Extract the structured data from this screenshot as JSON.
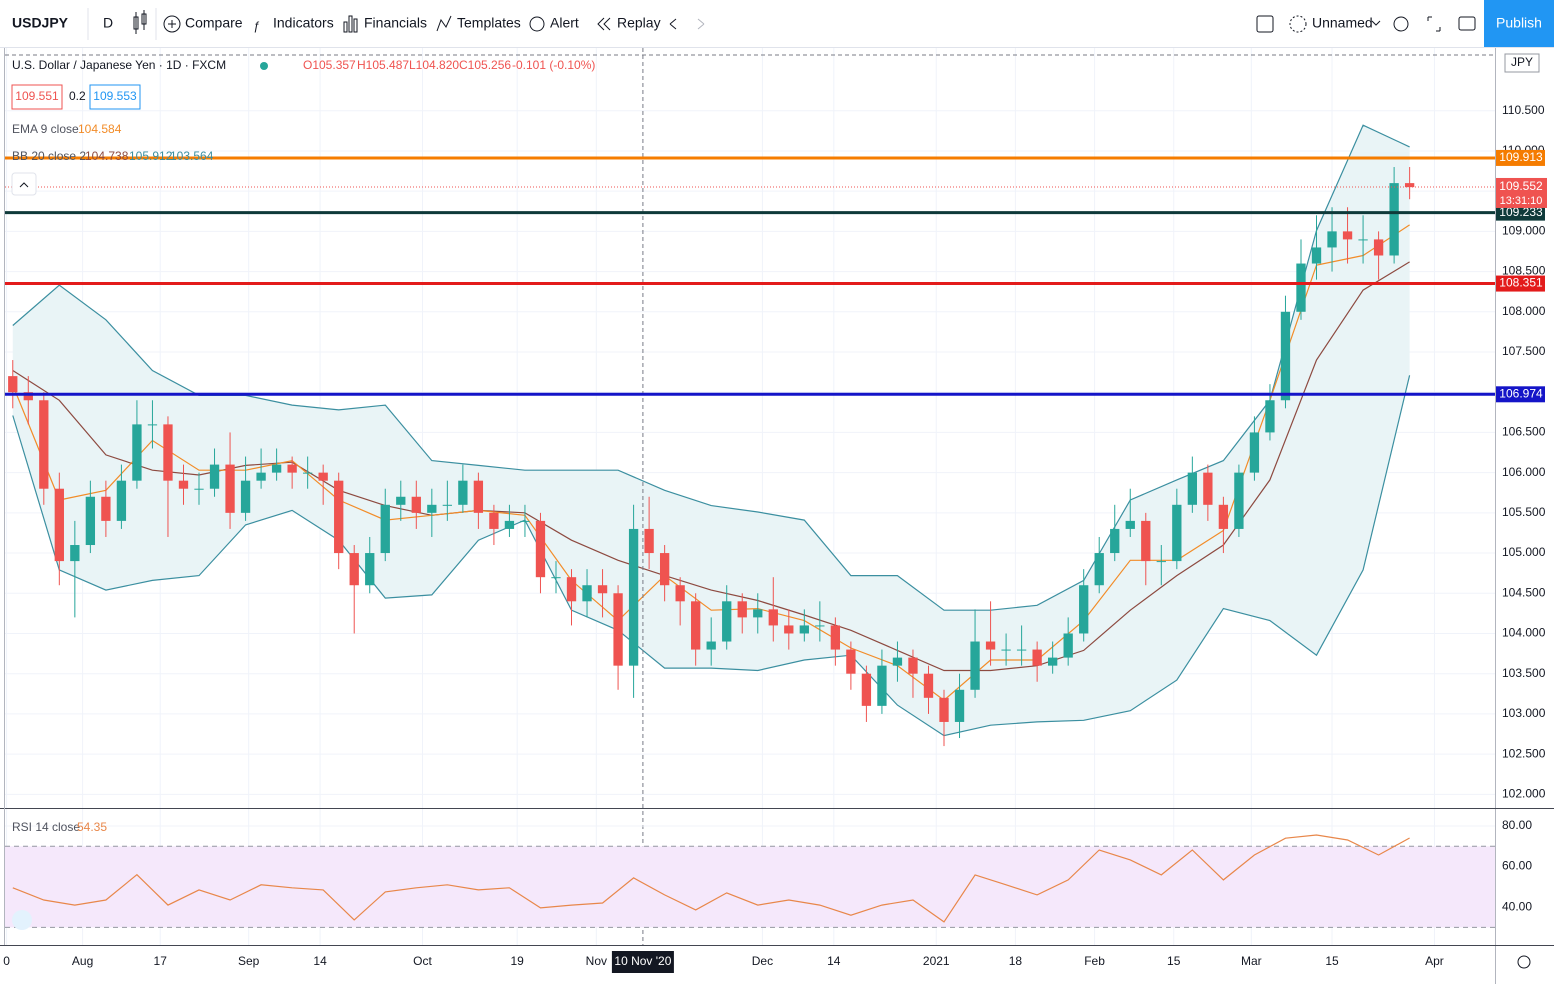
{
  "toolbar": {
    "symbol": "USDJPY",
    "interval": "D",
    "items": [
      "Compare",
      "Indicators",
      "Financials",
      "Templates",
      "Alert",
      "Replay"
    ],
    "layout": "Unnamed",
    "publish": "Publish"
  },
  "chart_data": [
    {
      "type": "candlestick",
      "title": "U.S. Dollar / Japanese Yen · 1D · FXCM",
      "ohlc_legend": [
        "O105.357",
        "H105.487",
        "L104.820",
        "C105.256",
        "-0.101 (-0.10%)"
      ],
      "bid": "109.551",
      "spread": "0.2",
      "ask": "109.553",
      "currency": "JPY",
      "up_color": "#26a69a",
      "down_color": "#ef5350",
      "open": [
        107.2,
        107.0,
        106.9,
        105.8,
        104.9,
        105.1,
        105.7,
        105.4,
        105.9,
        106.6,
        106.6,
        105.9,
        105.8,
        105.8,
        106.1,
        105.5,
        105.9,
        106.0,
        106.1,
        106.0,
        106.0,
        105.9,
        105.0,
        104.6,
        105.0,
        105.6,
        105.7,
        105.5,
        105.6,
        105.6,
        105.9,
        105.5,
        105.3,
        105.4,
        105.4,
        104.7,
        104.7,
        104.4,
        104.6,
        104.5,
        103.6,
        105.3,
        105.0,
        104.6,
        104.4,
        103.8,
        103.9,
        104.4,
        104.2,
        104.3,
        104.1,
        104.0,
        104.1,
        104.1,
        103.8,
        103.5,
        103.1,
        103.6,
        103.7,
        103.5,
        103.2,
        102.9,
        103.3,
        103.9,
        103.8,
        103.8,
        103.8,
        103.6,
        103.7,
        104.0,
        104.6,
        105.0,
        105.3,
        105.4,
        104.9,
        104.9,
        105.6,
        106.0,
        105.6,
        105.3,
        106.0,
        106.5,
        106.9,
        108.0,
        108.6,
        108.8,
        109.0,
        108.9,
        108.9,
        108.7,
        109.6
      ],
      "high": [
        107.4,
        107.2,
        107.0,
        106.0,
        105.4,
        105.9,
        105.9,
        106.1,
        106.9,
        106.9,
        106.7,
        106.1,
        106.0,
        106.3,
        106.5,
        106.2,
        106.3,
        106.3,
        106.2,
        106.2,
        106.1,
        106.0,
        105.1,
        105.2,
        105.8,
        105.9,
        105.9,
        105.8,
        105.9,
        106.1,
        106.0,
        105.6,
        105.6,
        105.6,
        105.5,
        104.9,
        104.8,
        104.8,
        104.8,
        104.6,
        105.6,
        105.7,
        105.1,
        104.7,
        104.5,
        104.2,
        104.6,
        104.5,
        104.5,
        104.7,
        104.3,
        104.3,
        104.4,
        104.2,
        103.9,
        103.6,
        103.8,
        103.9,
        103.8,
        103.6,
        103.3,
        103.5,
        104.3,
        104.4,
        104.0,
        104.1,
        103.9,
        103.9,
        104.2,
        104.8,
        105.2,
        105.6,
        105.8,
        105.5,
        105.1,
        105.8,
        106.2,
        106.1,
        105.7,
        106.1,
        106.7,
        107.1,
        108.2,
        108.9,
        109.2,
        109.3,
        109.3,
        109.2,
        109.0,
        109.8,
        109.8
      ],
      "low": [
        106.8,
        106.6,
        105.6,
        104.6,
        104.2,
        105.0,
        105.2,
        105.3,
        105.8,
        106.3,
        105.2,
        105.6,
        105.6,
        105.7,
        105.3,
        105.4,
        105.8,
        105.9,
        105.8,
        105.8,
        105.6,
        104.8,
        104.0,
        104.5,
        104.9,
        105.4,
        105.3,
        105.2,
        105.4,
        105.5,
        105.3,
        105.1,
        105.2,
        105.2,
        104.5,
        104.5,
        104.1,
        104.2,
        104.2,
        103.3,
        103.2,
        104.8,
        104.4,
        104.1,
        103.6,
        103.6,
        103.8,
        104.0,
        104.0,
        103.9,
        103.8,
        103.9,
        103.9,
        103.6,
        103.3,
        102.9,
        103.0,
        103.4,
        103.2,
        103.0,
        102.6,
        102.7,
        103.2,
        103.6,
        103.6,
        103.6,
        103.4,
        103.5,
        103.6,
        103.9,
        104.5,
        104.9,
        105.2,
        104.6,
        104.6,
        104.8,
        105.5,
        105.4,
        105.0,
        105.2,
        105.9,
        106.4,
        106.8,
        107.9,
        108.4,
        108.5,
        108.6,
        108.6,
        108.4,
        108.6,
        109.4
      ],
      "close": [
        107.0,
        106.9,
        105.8,
        104.9,
        105.1,
        105.7,
        105.4,
        105.9,
        106.6,
        106.6,
        105.9,
        105.8,
        105.8,
        106.1,
        105.5,
        105.9,
        106.0,
        106.1,
        106.0,
        106.0,
        105.9,
        105.0,
        104.6,
        105.0,
        105.6,
        105.7,
        105.5,
        105.6,
        105.6,
        105.9,
        105.5,
        105.3,
        105.4,
        105.4,
        104.7,
        104.7,
        104.4,
        104.6,
        104.5,
        103.6,
        105.3,
        105.0,
        104.6,
        104.4,
        103.8,
        103.9,
        104.4,
        104.2,
        104.3,
        104.1,
        104.0,
        104.1,
        104.1,
        103.8,
        103.5,
        103.1,
        103.6,
        103.7,
        103.5,
        103.2,
        102.9,
        103.3,
        103.9,
        103.8,
        103.8,
        103.8,
        103.6,
        103.7,
        104.0,
        104.6,
        105.0,
        105.3,
        105.4,
        104.9,
        104.9,
        105.6,
        106.0,
        105.6,
        105.3,
        106.0,
        106.5,
        106.9,
        108.0,
        108.6,
        108.8,
        109.0,
        108.9,
        108.9,
        108.7,
        109.6,
        109.55
      ],
      "series": [
        {
          "name": "EMA 9 close",
          "legend_value": "104.584",
          "color": "#f28c28",
          "x": [
            0,
            3,
            6,
            9,
            12,
            15,
            18,
            21,
            24,
            27,
            30,
            33,
            36,
            39,
            42,
            45,
            48,
            51,
            54,
            57,
            60,
            63,
            66,
            69,
            72,
            75,
            78,
            81,
            84,
            87,
            90
          ],
          "values": [
            107.09,
            105.66,
            105.78,
            106.4,
            106.03,
            106.03,
            106.15,
            105.66,
            105.41,
            105.47,
            105.53,
            105.47,
            104.66,
            104.16,
            104.72,
            104.29,
            104.31,
            104.16,
            103.82,
            103.6,
            103.17,
            103.67,
            103.67,
            104.16,
            104.91,
            104.91,
            105.28,
            106.9,
            108.58,
            108.7,
            109.08
          ]
        }
      ],
      "bands": {
        "name": "BB 20 close 2",
        "legend_values": [
          "104.738",
          "105.912",
          "103.564"
        ],
        "color": "#3b8fa0",
        "middle_color": "#8d4a40",
        "fill": "#e9f4f6",
        "x": [
          0,
          3,
          6,
          9,
          12,
          15,
          18,
          21,
          24,
          27,
          30,
          33,
          36,
          39,
          42,
          45,
          48,
          51,
          54,
          57,
          60,
          63,
          66,
          69,
          72,
          75,
          78,
          81,
          84,
          87,
          90
        ],
        "upper": [
          107.83,
          108.33,
          107.9,
          107.27,
          106.96,
          106.96,
          106.84,
          106.78,
          106.84,
          106.15,
          106.09,
          106.03,
          106.03,
          106.03,
          105.78,
          105.59,
          105.51,
          105.41,
          104.72,
          104.72,
          104.29,
          104.29,
          104.35,
          104.66,
          105.66,
          105.91,
          106.15,
          106.9,
          109.01,
          110.32,
          110.05
        ],
        "middle": [
          107.27,
          106.9,
          106.22,
          106.03,
          105.97,
          106.09,
          106.13,
          105.78,
          105.59,
          105.47,
          105.53,
          105.5,
          105.16,
          104.91,
          104.72,
          104.54,
          104.41,
          104.23,
          104.04,
          103.79,
          103.54,
          103.54,
          103.6,
          103.79,
          104.29,
          104.72,
          105.1,
          105.91,
          107.4,
          108.27,
          108.62
        ],
        "lower": [
          106.71,
          104.79,
          104.54,
          104.66,
          104.72,
          105.35,
          105.53,
          105.16,
          104.44,
          104.48,
          105.16,
          105.41,
          104.29,
          104.04,
          103.57,
          103.57,
          103.54,
          103.67,
          103.73,
          103.11,
          102.73,
          102.86,
          102.9,
          102.92,
          103.04,
          103.42,
          104.31,
          104.16,
          103.73,
          104.79,
          107.21
        ]
      },
      "price_lines": [
        {
          "value": 109.913,
          "color": "#f57c00"
        },
        {
          "value": 109.233,
          "color": "#0f3a3a"
        },
        {
          "value": 108.351,
          "color": "#e31b1b"
        },
        {
          "value": 106.974,
          "color": "#1414c8"
        }
      ],
      "last_price": {
        "value": 109.552,
        "countdown": "13:31:10",
        "color": "#ef5350"
      },
      "crosshair": {
        "x": 40.6,
        "label": "10 Nov '20"
      },
      "grid": true,
      "xlim": [
        -0.5,
        95.5
      ],
      "xticks": [
        {
          "value": -0.4,
          "label": "0"
        },
        {
          "value": 4.5,
          "label": "Aug"
        },
        {
          "value": 9.5,
          "label": "17"
        },
        {
          "value": 15.2,
          "label": "Sep"
        },
        {
          "value": 19.8,
          "label": "14"
        },
        {
          "value": 26.4,
          "label": "Oct"
        },
        {
          "value": 32.5,
          "label": "19"
        },
        {
          "value": 37.6,
          "label": "Nov"
        },
        {
          "value": 48.3,
          "label": "Dec"
        },
        {
          "value": 52.9,
          "label": "14"
        },
        {
          "value": 59.5,
          "label": "2021"
        },
        {
          "value": 64.6,
          "label": "18"
        },
        {
          "value": 69.7,
          "label": "Feb"
        },
        {
          "value": 74.8,
          "label": "15"
        },
        {
          "value": 79.8,
          "label": "Mar"
        },
        {
          "value": 85,
          "label": "15"
        },
        {
          "value": 91.6,
          "label": "Apr"
        }
      ],
      "ylim": [
        101.83,
        111.28
      ],
      "yticks": [
        {
          "value": 102,
          "label": "102.000"
        },
        {
          "value": 102.5,
          "label": "102.500"
        },
        {
          "value": 103,
          "label": "103.000"
        },
        {
          "value": 103.5,
          "label": "103.500"
        },
        {
          "value": 104,
          "label": "104.000"
        },
        {
          "value": 104.5,
          "label": "104.500"
        },
        {
          "value": 105,
          "label": "105.000"
        },
        {
          "value": 105.5,
          "label": "105.500"
        },
        {
          "value": 106,
          "label": "106.000"
        },
        {
          "value": 106.5,
          "label": "106.500"
        },
        {
          "value": 107,
          "label": "107.000"
        },
        {
          "value": 107.5,
          "label": "107.500"
        },
        {
          "value": 108,
          "label": "108.000"
        },
        {
          "value": 108.5,
          "label": "108.500"
        },
        {
          "value": 109,
          "label": "109.000"
        },
        {
          "value": 109.5,
          "label": "109.500"
        },
        {
          "value": 110,
          "label": "110.000"
        },
        {
          "value": 110.5,
          "label": "110.500"
        }
      ]
    },
    {
      "type": "line",
      "title": "RSI 14 close",
      "legend_value": "54.35",
      "color": "#e8874a",
      "x": [
        0,
        2,
        4,
        6,
        8,
        10,
        12,
        14,
        16,
        18,
        20,
        22,
        24,
        26,
        28,
        30,
        32,
        34,
        36,
        38,
        40,
        42,
        44,
        46,
        48,
        50,
        52,
        54,
        56,
        58,
        60,
        62,
        64,
        66,
        68,
        70,
        72,
        74,
        76,
        78,
        80,
        82,
        84,
        86,
        88,
        90
      ],
      "values": [
        49.5,
        43.5,
        41,
        43.5,
        56,
        41,
        48.5,
        43.5,
        51,
        49.5,
        48.5,
        33.7,
        47.5,
        49.5,
        51,
        48.5,
        49.5,
        39.6,
        41,
        42,
        54.4,
        46,
        38.6,
        47,
        41,
        43.5,
        41,
        36,
        41,
        43.5,
        32.7,
        55.9,
        51,
        46,
        53.4,
        68.2,
        63.3,
        55.9,
        68.2,
        53.4,
        65.7,
        74,
        75.6,
        73.1,
        65.7,
        74.1
      ],
      "band": [
        30,
        70
      ],
      "band_color": "#f5e8fb",
      "xlim": [
        -0.5,
        95.5
      ],
      "ylim": [
        21.3,
        88.9
      ],
      "yticks": [
        {
          "value": 40,
          "label": "40.00"
        },
        {
          "value": 60,
          "label": "60.00"
        },
        {
          "value": 80,
          "label": "80.00"
        }
      ]
    }
  ]
}
